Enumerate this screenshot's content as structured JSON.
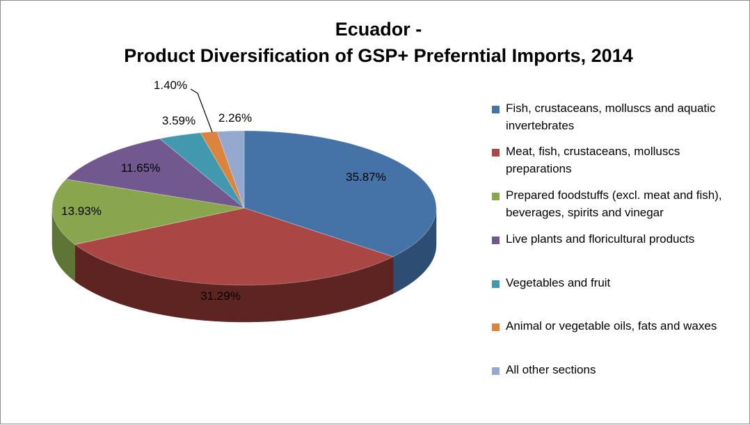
{
  "chart_data": {
    "type": "pie",
    "title_line1": "Ecuador -",
    "title_line2": "Product Diversification of GSP+ Preferntial Imports, 2014",
    "slices": [
      {
        "label": "Fish, crustaceans, molluscs and aquatic invertebrates",
        "value": 35.87,
        "display": "35.87%",
        "color": "#4572A7",
        "side": "#2E4D72"
      },
      {
        "label": "Meat, fish, crustaceans, molluscs preparations",
        "value": 31.29,
        "display": "31.29%",
        "color": "#AA4643",
        "side": "#5E2422"
      },
      {
        "label": "Prepared foodstuffs (excl. meat and fish), beverages, spirits and vinegar",
        "value": 13.93,
        "display": "13.93%",
        "color": "#89A54E",
        "side": "#5E7535"
      },
      {
        "label": "Live plants and floricultural products",
        "value": 11.65,
        "display": "11.65%",
        "color": "#71588F",
        "side": "#4A3A5F"
      },
      {
        "label": "Vegetables and fruit",
        "value": 3.59,
        "display": "3.59%",
        "color": "#4198AF",
        "side": "#2A6675"
      },
      {
        "label": "Animal or vegetable oils, fats and waxes",
        "value": 1.4,
        "display": "1.40%",
        "color": "#DB843D",
        "side": "#9A5A28"
      },
      {
        "label": "All other sections",
        "value": 2.26,
        "display": "2.26%",
        "color": "#93A9CF",
        "side": "#6679A0"
      }
    ],
    "legend_position": "right"
  }
}
